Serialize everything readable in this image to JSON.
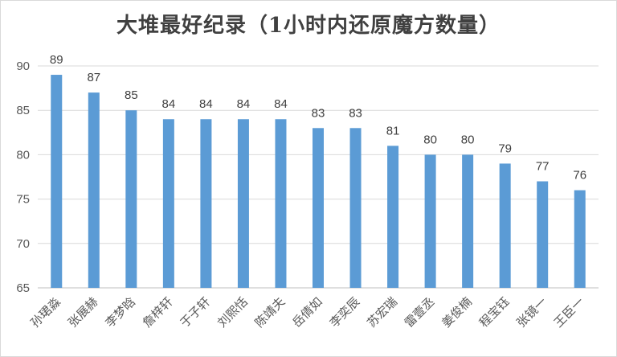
{
  "chart_data": {
    "type": "bar",
    "title": "大堆最好纪录（1小时内还原魔方数量）",
    "categories": [
      "孙珺淼",
      "张展赫",
      "李梦晗",
      "詹梓轩",
      "于子轩",
      "刘熙恬",
      "陈靖夫",
      "岳倩如",
      "李奕辰",
      "苏宏瑞",
      "雷壹丞",
      "姜俊楠",
      "程宝钰",
      "张镜一",
      "王臣一"
    ],
    "values": [
      89,
      87,
      85,
      84,
      84,
      84,
      84,
      83,
      83,
      81,
      80,
      80,
      79,
      77,
      76
    ],
    "ylim": [
      65,
      90
    ],
    "yticks": [
      65,
      70,
      75,
      80,
      85,
      90
    ],
    "grid": true,
    "bar_color": "#5B9BD5",
    "show_data_labels": true
  }
}
